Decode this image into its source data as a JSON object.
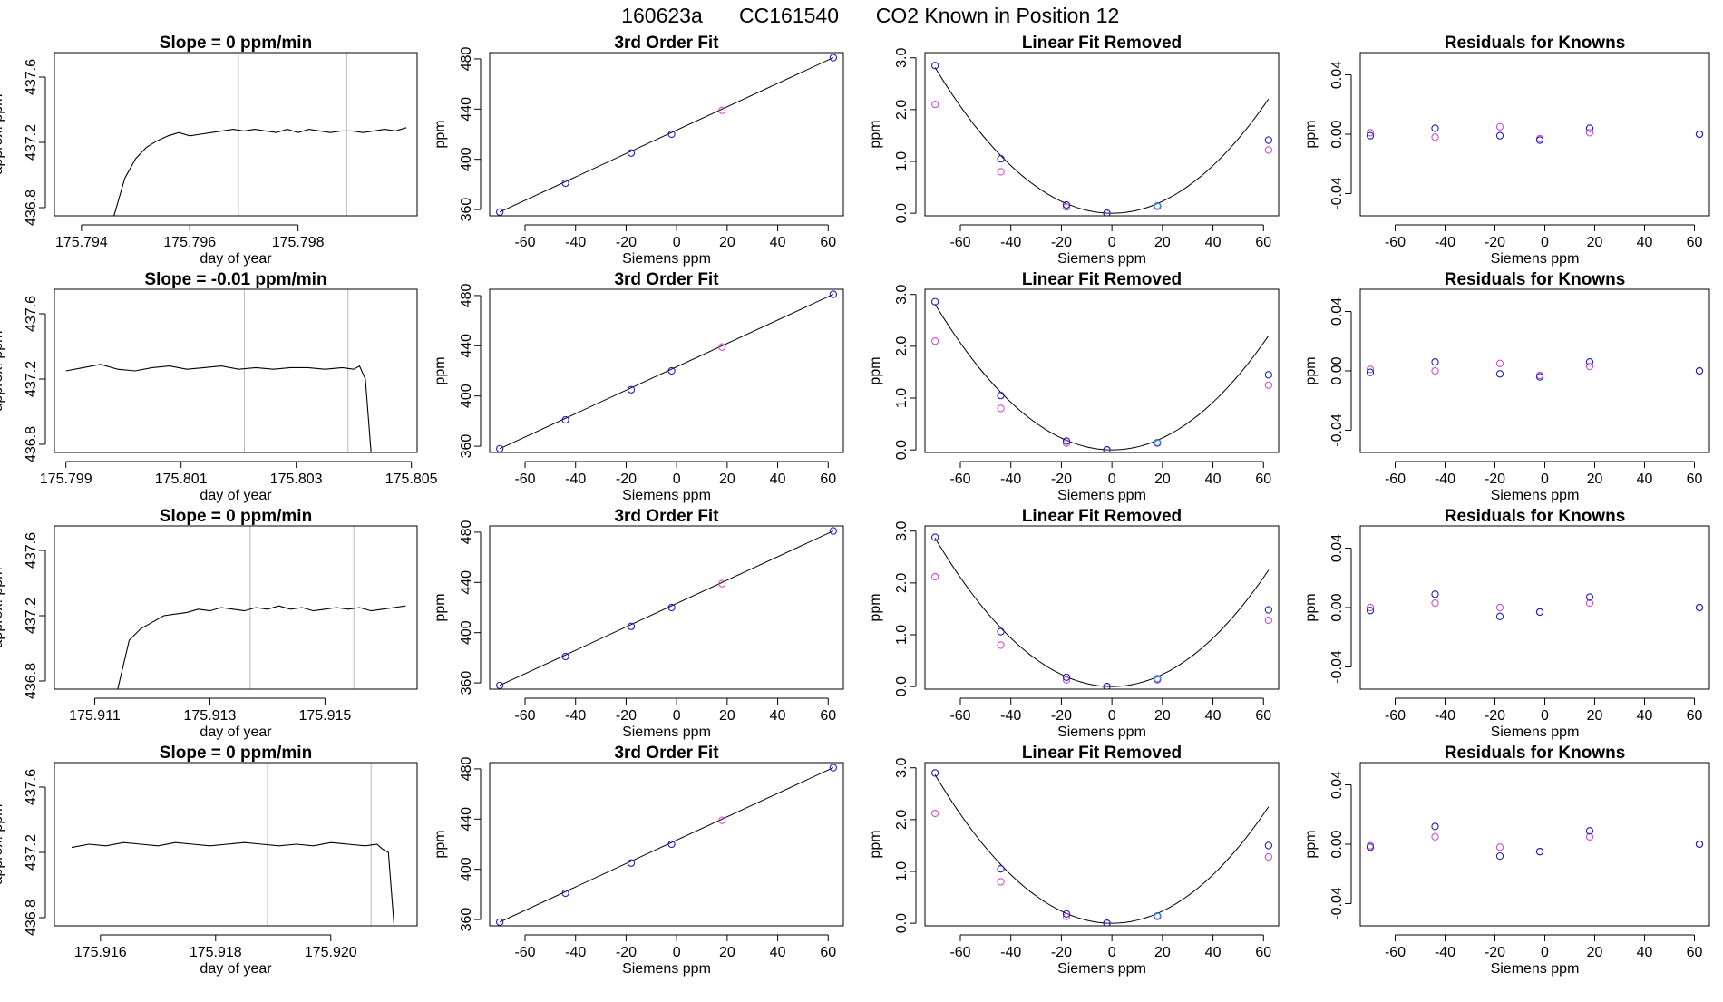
{
  "suptitle": {
    "run": "160623a",
    "tank": "CC161540",
    "label": "CO2 Known in Position  12"
  },
  "colors": {
    "trace": "#000000",
    "vline": "#bbbbbb",
    "known": "#1f1fc8",
    "alt": "#d050d0",
    "ref": "#3aa0e0"
  },
  "chart_data": [
    {
      "type": "line",
      "row": 0,
      "col": 0,
      "title": "Slope =  0  ppm/min",
      "xlabel": "day of year",
      "ylabel": "approx. ppm",
      "xlim": [
        175.7935,
        175.8002
      ],
      "ylim": [
        436.75,
        437.75
      ],
      "xticks": [
        175.794,
        175.796,
        175.798
      ],
      "xticklabels": [
        "175.794",
        "175.796",
        "175.798"
      ],
      "yticks": [
        436.8,
        437.2,
        437.6
      ],
      "yticklabels": [
        "436.8",
        "437.2",
        "437.6"
      ],
      "vlines": [
        175.7969,
        175.7989
      ],
      "x": [
        175.7946,
        175.7948,
        175.795,
        175.7952,
        175.7954,
        175.7956,
        175.7958,
        175.796,
        175.7962,
        175.7964,
        175.7966,
        175.7968,
        175.797,
        175.7972,
        175.7974,
        175.7976,
        175.7978,
        175.798,
        175.7982,
        175.7984,
        175.7986,
        175.7988,
        175.799,
        175.7992,
        175.7994,
        175.7996,
        175.7998,
        175.8
      ],
      "y": [
        436.75,
        436.98,
        437.1,
        437.17,
        437.21,
        437.24,
        437.26,
        437.24,
        437.25,
        437.26,
        437.27,
        437.28,
        437.27,
        437.28,
        437.27,
        437.26,
        437.28,
        437.26,
        437.28,
        437.27,
        437.26,
        437.27,
        437.27,
        437.26,
        437.27,
        437.28,
        437.27,
        437.29
      ]
    },
    {
      "type": "line",
      "row": 1,
      "col": 0,
      "title": "Slope =  -0.01  ppm/min",
      "xlabel": "day of year",
      "ylabel": "approx. ppm",
      "xlim": [
        175.7988,
        175.8051
      ],
      "ylim": [
        436.75,
        437.75
      ],
      "xticks": [
        175.799,
        175.801,
        175.803,
        175.805
      ],
      "xticklabels": [
        "175.799",
        "175.801",
        "175.803",
        "175.805"
      ],
      "yticks": [
        436.8,
        437.2,
        437.6
      ],
      "yticklabels": [
        "436.8",
        "437.2",
        "437.6"
      ],
      "vlines": [
        175.8021,
        175.8039
      ],
      "x": [
        175.799,
        175.7993,
        175.7996,
        175.7999,
        175.8002,
        175.8005,
        175.8008,
        175.8011,
        175.8014,
        175.8017,
        175.802,
        175.8023,
        175.8026,
        175.8029,
        175.8032,
        175.8035,
        175.8038,
        175.804,
        175.8041,
        175.8042,
        175.8043
      ],
      "y": [
        437.25,
        437.27,
        437.29,
        437.26,
        437.25,
        437.27,
        437.28,
        437.26,
        437.27,
        437.28,
        437.26,
        437.27,
        437.26,
        437.27,
        437.27,
        437.26,
        437.27,
        437.26,
        437.28,
        437.2,
        436.75
      ]
    },
    {
      "type": "line",
      "row": 2,
      "col": 0,
      "title": "Slope =  0  ppm/min",
      "xlabel": "day of year",
      "ylabel": "approx. ppm",
      "xlim": [
        175.9103,
        175.9166
      ],
      "ylim": [
        436.75,
        437.75
      ],
      "xticks": [
        175.911,
        175.913,
        175.915
      ],
      "xticklabels": [
        "175.911",
        "175.913",
        "175.915"
      ],
      "yticks": [
        436.8,
        437.2,
        437.6
      ],
      "yticklabels": [
        "436.8",
        "437.2",
        "437.6"
      ],
      "vlines": [
        175.9137,
        175.9155
      ],
      "x": [
        175.9114,
        175.9116,
        175.9118,
        175.912,
        175.9122,
        175.9124,
        175.9126,
        175.9128,
        175.913,
        175.9132,
        175.9134,
        175.9136,
        175.9138,
        175.914,
        175.9142,
        175.9144,
        175.9146,
        175.9148,
        175.915,
        175.9152,
        175.9154,
        175.9156,
        175.9158,
        175.916,
        175.9162,
        175.9164
      ],
      "y": [
        436.75,
        437.05,
        437.12,
        437.16,
        437.2,
        437.21,
        437.22,
        437.24,
        437.23,
        437.25,
        437.24,
        437.23,
        437.25,
        437.24,
        437.26,
        437.24,
        437.25,
        437.23,
        437.24,
        437.25,
        437.24,
        437.25,
        437.23,
        437.24,
        437.25,
        437.26
      ]
    },
    {
      "type": "line",
      "row": 3,
      "col": 0,
      "title": "Slope =  0  ppm/min",
      "xlabel": "day of year",
      "ylabel": "approx. ppm",
      "xlim": [
        175.9152,
        175.9215
      ],
      "ylim": [
        436.75,
        437.75
      ],
      "xticks": [
        175.916,
        175.918,
        175.92
      ],
      "xticklabels": [
        "175.916",
        "175.918",
        "175.920"
      ],
      "yticks": [
        436.8,
        437.2,
        437.6
      ],
      "yticklabels": [
        "436.8",
        "437.2",
        "437.6"
      ],
      "vlines": [
        175.9189,
        175.9207
      ],
      "x": [
        175.9155,
        175.9158,
        175.9161,
        175.9164,
        175.9167,
        175.917,
        175.9173,
        175.9176,
        175.9179,
        175.9182,
        175.9185,
        175.9188,
        175.9191,
        175.9194,
        175.9197,
        175.92,
        175.9203,
        175.9206,
        175.9208,
        175.9209,
        175.921,
        175.9211
      ],
      "y": [
        437.23,
        437.25,
        437.24,
        437.26,
        437.25,
        437.24,
        437.26,
        437.25,
        437.24,
        437.25,
        437.26,
        437.25,
        437.24,
        437.25,
        437.24,
        437.26,
        437.25,
        437.24,
        437.25,
        437.22,
        437.2,
        436.75
      ]
    },
    {
      "type": "scatter",
      "row": 0,
      "col": 1,
      "title": "3rd Order Fit",
      "xlabel": "Siemens ppm",
      "ylabel": "ppm",
      "xlim": [
        -74,
        66
      ],
      "ylim": [
        355,
        485
      ],
      "xticks": [
        -60,
        -40,
        -20,
        0,
        20,
        40,
        60
      ],
      "yticks": [
        360,
        400,
        440,
        480
      ],
      "fit_line": [
        [
          -70,
          358
        ],
        [
          62,
          481
        ]
      ],
      "known_x": [
        -70,
        -44,
        -18,
        -2,
        62
      ],
      "known_y": [
        358,
        381,
        405,
        420,
        481
      ],
      "alt_x": [
        18
      ],
      "alt_y": [
        439
      ]
    },
    {
      "type": "scatter",
      "row": 1,
      "col": 1,
      "title": "3rd Order Fit",
      "xlabel": "Siemens ppm",
      "ylabel": "ppm",
      "xlim": [
        -74,
        66
      ],
      "ylim": [
        355,
        485
      ],
      "xticks": [
        -60,
        -40,
        -20,
        0,
        20,
        40,
        60
      ],
      "yticks": [
        360,
        400,
        440,
        480
      ],
      "fit_line": [
        [
          -70,
          358
        ],
        [
          62,
          481
        ]
      ],
      "known_x": [
        -70,
        -44,
        -18,
        -2,
        62
      ],
      "known_y": [
        358,
        381,
        405,
        420,
        481
      ],
      "alt_x": [
        18
      ],
      "alt_y": [
        439
      ]
    },
    {
      "type": "scatter",
      "row": 2,
      "col": 1,
      "title": "3rd Order Fit",
      "xlabel": "Siemens ppm",
      "ylabel": "ppm",
      "xlim": [
        -74,
        66
      ],
      "ylim": [
        355,
        485
      ],
      "xticks": [
        -60,
        -40,
        -20,
        0,
        20,
        40,
        60
      ],
      "yticks": [
        360,
        400,
        440,
        480
      ],
      "fit_line": [
        [
          -70,
          358
        ],
        [
          62,
          481
        ]
      ],
      "known_x": [
        -70,
        -44,
        -18,
        -2,
        62
      ],
      "known_y": [
        358,
        381,
        405,
        420,
        481
      ],
      "alt_x": [
        18
      ],
      "alt_y": [
        439
      ]
    },
    {
      "type": "scatter",
      "row": 3,
      "col": 1,
      "title": "3rd Order Fit",
      "xlabel": "Siemens ppm",
      "ylabel": "ppm",
      "xlim": [
        -74,
        66
      ],
      "ylim": [
        355,
        485
      ],
      "xticks": [
        -60,
        -40,
        -20,
        0,
        20,
        40,
        60
      ],
      "yticks": [
        360,
        400,
        440,
        480
      ],
      "fit_line": [
        [
          -70,
          358
        ],
        [
          62,
          481
        ]
      ],
      "known_x": [
        -70,
        -44,
        -18,
        -2,
        62
      ],
      "known_y": [
        358,
        381,
        405,
        420,
        481
      ],
      "alt_x": [
        18
      ],
      "alt_y": [
        439
      ]
    },
    {
      "type": "scatter",
      "row": 0,
      "col": 2,
      "title": "Linear Fit Removed",
      "xlabel": "Siemens ppm",
      "ylabel": "ppm",
      "xlim": [
        -74,
        66
      ],
      "ylim": [
        -0.05,
        3.1
      ],
      "xticks": [
        -60,
        -40,
        -20,
        0,
        20,
        40,
        60
      ],
      "yticks": [
        0,
        1,
        2,
        3
      ],
      "yticklabels": [
        "0.0",
        "1.0",
        "2.0",
        "3.0"
      ],
      "curve_a": 0.000574,
      "curve_x0": 0,
      "known_x": [
        -70,
        -44,
        -18,
        -2,
        18,
        62
      ],
      "known_y": [
        2.85,
        1.05,
        0.16,
        0.0,
        0.14,
        1.41
      ],
      "alt_x": [
        -70,
        -44,
        -18,
        -2,
        18,
        62
      ],
      "alt_y": [
        2.1,
        0.8,
        0.12,
        0.0,
        0.13,
        1.22
      ]
    },
    {
      "type": "scatter",
      "row": 1,
      "col": 2,
      "title": "Linear Fit Removed",
      "xlabel": "Siemens ppm",
      "ylabel": "ppm",
      "xlim": [
        -74,
        66
      ],
      "ylim": [
        -0.05,
        3.1
      ],
      "xticks": [
        -60,
        -40,
        -20,
        0,
        20,
        40,
        60
      ],
      "yticks": [
        0,
        1,
        2,
        3
      ],
      "yticklabels": [
        "0.0",
        "1.0",
        "2.0",
        "3.0"
      ],
      "curve_a": 0.000574,
      "curve_x0": 0,
      "known_x": [
        -70,
        -44,
        -18,
        -2,
        18,
        62
      ],
      "known_y": [
        2.86,
        1.05,
        0.17,
        0.0,
        0.14,
        1.45
      ],
      "alt_x": [
        -70,
        -44,
        -18,
        -2,
        18,
        62
      ],
      "alt_y": [
        2.1,
        0.8,
        0.13,
        0.0,
        0.13,
        1.25
      ]
    },
    {
      "type": "scatter",
      "row": 2,
      "col": 2,
      "title": "Linear Fit Removed",
      "xlabel": "Siemens ppm",
      "ylabel": "ppm",
      "xlim": [
        -74,
        66
      ],
      "ylim": [
        -0.05,
        3.1
      ],
      "xticks": [
        -60,
        -40,
        -20,
        0,
        20,
        40,
        60
      ],
      "yticks": [
        0,
        1,
        2,
        3
      ],
      "yticklabels": [
        "0.0",
        "1.0",
        "2.0",
        "3.0"
      ],
      "curve_a": 0.000585,
      "curve_x0": 0,
      "known_x": [
        -70,
        -44,
        -18,
        -2,
        18,
        62
      ],
      "known_y": [
        2.88,
        1.06,
        0.18,
        0.0,
        0.15,
        1.48
      ],
      "alt_x": [
        -70,
        -44,
        -18,
        -2,
        18,
        62
      ],
      "alt_y": [
        2.12,
        0.8,
        0.13,
        0.0,
        0.13,
        1.28
      ]
    },
    {
      "type": "scatter",
      "row": 3,
      "col": 2,
      "title": "Linear Fit Removed",
      "xlabel": "Siemens ppm",
      "ylabel": "ppm",
      "xlim": [
        -74,
        66
      ],
      "ylim": [
        -0.05,
        3.1
      ],
      "xticks": [
        -60,
        -40,
        -20,
        0,
        20,
        40,
        60
      ],
      "yticks": [
        0,
        1,
        2,
        3
      ],
      "yticklabels": [
        "0.0",
        "1.0",
        "2.0",
        "3.0"
      ],
      "curve_a": 0.000585,
      "curve_x0": 0,
      "known_x": [
        -70,
        -44,
        -18,
        -2,
        18,
        62
      ],
      "known_y": [
        2.9,
        1.05,
        0.18,
        0.0,
        0.14,
        1.5
      ],
      "alt_x": [
        -70,
        -44,
        -18,
        -2,
        18,
        62
      ],
      "alt_y": [
        2.12,
        0.8,
        0.13,
        0.0,
        0.13,
        1.28
      ]
    },
    {
      "type": "scatter",
      "row": 0,
      "col": 3,
      "title": "Residuals for Knowns",
      "xlabel": "Siemens ppm",
      "ylabel": "ppm",
      "xlim": [
        -74,
        66
      ],
      "ylim": [
        -0.055,
        0.055
      ],
      "xticks": [
        -60,
        -40,
        -20,
        0,
        20,
        40,
        60
      ],
      "yticks": [
        -0.04,
        0,
        0.04
      ],
      "yticklabels": [
        "-0.04",
        "0.00",
        "0.04"
      ],
      "known_x": [
        -70,
        -44,
        -18,
        -2,
        18,
        62
      ],
      "known_y": [
        -0.001,
        0.004,
        -0.001,
        -0.004,
        0.004,
        0.0
      ],
      "alt_x": [
        -70,
        -44,
        -18,
        -2,
        18,
        62
      ],
      "alt_y": [
        0.001,
        -0.002,
        0.005,
        -0.003,
        0.001,
        0.0
      ]
    },
    {
      "type": "scatter",
      "row": 1,
      "col": 3,
      "title": "Residuals for Knowns",
      "xlabel": "Siemens ppm",
      "ylabel": "ppm",
      "xlim": [
        -74,
        66
      ],
      "ylim": [
        -0.055,
        0.055
      ],
      "xticks": [
        -60,
        -40,
        -20,
        0,
        20,
        40,
        60
      ],
      "yticks": [
        -0.04,
        0,
        0.04
      ],
      "yticklabels": [
        "-0.04",
        "0.00",
        "0.04"
      ],
      "known_x": [
        -70,
        -44,
        -18,
        -2,
        18,
        62
      ],
      "known_y": [
        -0.001,
        0.006,
        -0.002,
        -0.004,
        0.006,
        0.0
      ],
      "alt_x": [
        -70,
        -44,
        -18,
        -2,
        18,
        62
      ],
      "alt_y": [
        0.001,
        0.0,
        0.005,
        -0.003,
        0.003,
        0.0
      ]
    },
    {
      "type": "scatter",
      "row": 2,
      "col": 3,
      "title": "Residuals for Knowns",
      "xlabel": "Siemens ppm",
      "ylabel": "ppm",
      "xlim": [
        -74,
        66
      ],
      "ylim": [
        -0.055,
        0.055
      ],
      "xticks": [
        -60,
        -40,
        -20,
        0,
        20,
        40,
        60
      ],
      "yticks": [
        -0.04,
        0,
        0.04
      ],
      "yticklabels": [
        "-0.04",
        "0.00",
        "0.04"
      ],
      "known_x": [
        -70,
        -44,
        -18,
        -2,
        18,
        62
      ],
      "known_y": [
        -0.002,
        0.009,
        -0.006,
        -0.003,
        0.007,
        0.0
      ],
      "alt_x": [
        -70,
        -44,
        -18,
        -2,
        18,
        62
      ],
      "alt_y": [
        0.0,
        0.003,
        0.0,
        -0.003,
        0.003,
        0.0
      ]
    },
    {
      "type": "scatter",
      "row": 3,
      "col": 3,
      "title": "Residuals for Knowns",
      "xlabel": "Siemens ppm",
      "ylabel": "ppm",
      "xlim": [
        -74,
        66
      ],
      "ylim": [
        -0.055,
        0.055
      ],
      "xticks": [
        -60,
        -40,
        -20,
        0,
        20,
        40,
        60
      ],
      "yticks": [
        -0.04,
        0,
        0.04
      ],
      "yticklabels": [
        "-0.04",
        "0.00",
        "0.04"
      ],
      "known_x": [
        -70,
        -44,
        -18,
        -2,
        18,
        62
      ],
      "known_y": [
        -0.002,
        0.012,
        -0.008,
        -0.005,
        0.009,
        0.0
      ],
      "alt_x": [
        -70,
        -44,
        -18,
        -2,
        18,
        62
      ],
      "alt_y": [
        -0.001,
        0.005,
        -0.002,
        -0.005,
        0.005,
        0.0
      ]
    }
  ]
}
